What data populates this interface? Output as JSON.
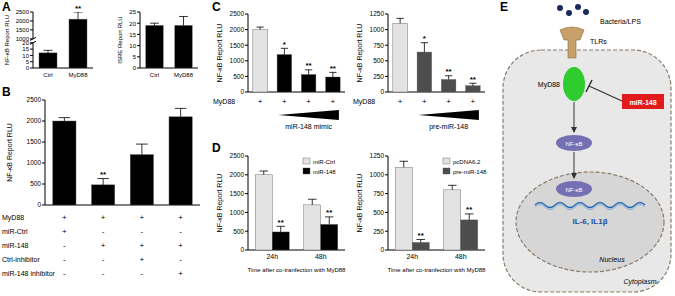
{
  "panel_labels": [
    "A",
    "B",
    "C",
    "D",
    "E"
  ],
  "chart_data": [
    {
      "type": "bar",
      "ylabel": "NF-κB Report RLU",
      "categories": [
        "Ctrl",
        "MyD88"
      ],
      "values": [
        12,
        2100
      ],
      "errors": [
        2,
        400
      ],
      "annotations": [
        null,
        "**"
      ],
      "color": "#000000",
      "ylim": [
        0,
        2500
      ],
      "ybreak": [
        20,
        1000
      ],
      "yticks": [
        0,
        5,
        10,
        15,
        20,
        1000,
        1500,
        2000,
        2500
      ],
      "grid": false
    },
    {
      "type": "bar",
      "ylabel": "ISRE Report RLU",
      "categories": [
        "Ctrl",
        "MyD88"
      ],
      "values": [
        19,
        19
      ],
      "errors": [
        1,
        4
      ],
      "annotations": [
        null,
        null
      ],
      "color": "#000000",
      "ylim": [
        0,
        25
      ],
      "yticks": [
        0,
        5,
        10,
        15,
        20,
        25
      ],
      "grid": false
    },
    {
      "type": "bar",
      "ylabel": "NF-κB Report RLU",
      "categories": [
        null,
        null,
        null,
        null
      ],
      "values": [
        2000,
        480,
        1200,
        2100
      ],
      "errors": [
        80,
        150,
        250,
        200
      ],
      "annotations": [
        null,
        "**",
        null,
        null
      ],
      "color": "#000000",
      "ylim": [
        0,
        2500
      ],
      "yticks": [
        0,
        500,
        1000,
        1500,
        2000,
        2500
      ],
      "grid": false,
      "conditions": [
        {
          "label": "MyD88",
          "signs": [
            "+",
            "+",
            "+",
            "+"
          ]
        },
        {
          "label": "miR-Ctrl",
          "signs": [
            "+",
            "-",
            "-",
            "-"
          ]
        },
        {
          "label": "miR-148",
          "signs": [
            "-",
            "+",
            "+",
            "+"
          ]
        },
        {
          "label": "Ctrl-inhibitor",
          "signs": [
            "-",
            "-",
            "+",
            "-"
          ]
        },
        {
          "label": "miR-148 inhibitor",
          "signs": [
            "-",
            "-",
            "-",
            "+"
          ]
        }
      ]
    },
    {
      "type": "bar",
      "ylabel": "NF-κB Report RLU",
      "categories": [
        null,
        null,
        null,
        null
      ],
      "values": [
        2000,
        1200,
        560,
        480
      ],
      "errors": [
        80,
        200,
        150,
        150
      ],
      "annotations": [
        null,
        "*",
        "**",
        "**"
      ],
      "colors": [
        "#e3e3e3",
        "#000000",
        "#000000",
        "#000000"
      ],
      "ylim": [
        0,
        2500
      ],
      "yticks": [
        0,
        500,
        1000,
        1500,
        2000,
        2500
      ],
      "grid": false,
      "conditions": [
        {
          "label": "MyD88",
          "signs": [
            "+",
            "+",
            "+",
            "+"
          ]
        },
        {
          "label": "miR-148 mimic"
        }
      ]
    },
    {
      "type": "bar",
      "ylabel": "NF-κB Report RLU",
      "categories": [
        null,
        null,
        null,
        null
      ],
      "values": [
        1100,
        640,
        200,
        100
      ],
      "errors": [
        80,
        150,
        60,
        40
      ],
      "annotations": [
        null,
        "*",
        "**",
        "**"
      ],
      "colors": [
        "#e3e3e3",
        "#4d4d4d",
        "#4d4d4d",
        "#4d4d4d"
      ],
      "ylim": [
        0,
        1250
      ],
      "yticks": [
        0,
        250,
        500,
        750,
        1000,
        1250
      ],
      "grid": false,
      "conditions": [
        {
          "label": "MyD88",
          "signs": [
            "+",
            "+",
            "+",
            "+"
          ]
        },
        {
          "label": "pre-miR-148"
        }
      ]
    },
    {
      "type": "bar",
      "ylabel": "NF-κB Report RLU",
      "xlabel": "Time after co-tranfection with MyD88",
      "categories": [
        "24h",
        "48h"
      ],
      "legend": "top-right",
      "ylim": [
        0,
        2500
      ],
      "yticks": [
        0,
        500,
        1000,
        1500,
        2000,
        2500
      ],
      "grid": false,
      "series": [
        {
          "name": "miR-Ctrl",
          "color": "#e3e3e3",
          "values": [
            2000,
            1200
          ],
          "errors": [
            100,
            150
          ],
          "annotations": [
            null,
            null
          ]
        },
        {
          "name": "miR-148",
          "color": "#000000",
          "values": [
            480,
            680
          ],
          "errors": [
            150,
            200
          ],
          "annotations": [
            "**",
            "**"
          ]
        }
      ]
    },
    {
      "type": "bar",
      "ylabel": "NF-κB Report RLU",
      "xlabel": "Time after co-tranfection with MyD88",
      "categories": [
        "24h",
        "48h"
      ],
      "legend": "top-right",
      "ylim": [
        0,
        1250
      ],
      "yticks": [
        0,
        250,
        500,
        750,
        1000,
        1250
      ],
      "grid": false,
      "series": [
        {
          "name": "pcDNA6.2",
          "color": "#e3e3e3",
          "values": [
            1100,
            800
          ],
          "errors": [
            80,
            60
          ],
          "annotations": [
            null,
            null
          ]
        },
        {
          "name": "pre-miR-148",
          "color": "#4d4d4d",
          "values": [
            100,
            400
          ],
          "errors": [
            40,
            80
          ],
          "annotations": [
            "**",
            "**"
          ]
        }
      ]
    }
  ],
  "diagram": {
    "nodes": [
      {
        "label": "Bacteria/LPS"
      },
      {
        "label": "TLRs"
      },
      {
        "label": "MyD88"
      },
      {
        "label": "miR-148"
      },
      {
        "label": "NF-κB"
      },
      {
        "label": "NF-κB"
      },
      {
        "label": "IL-6, IL1β"
      },
      {
        "label": "Nucleus"
      },
      {
        "label": "Cytoplasm"
      }
    ]
  }
}
